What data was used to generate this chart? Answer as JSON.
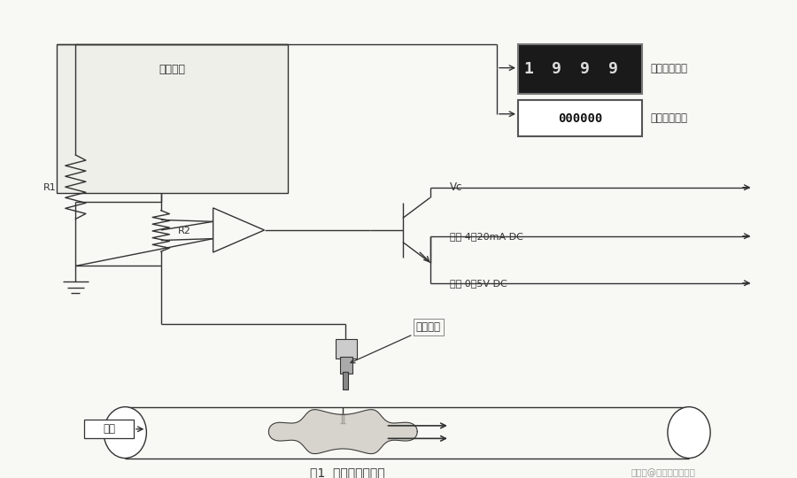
{
  "bg_color": "#f8f8f4",
  "line_color": "#333333",
  "title": "图1  结构及工作原理",
  "watermark": "搜狐号@嘉可自动化仪表",
  "electronic_box": "电子部件",
  "R1": "R1",
  "R2": "R2",
  "Vc": "Vc",
  "output1": "输出 4～20mA DC",
  "output2": "输出 0～5V DC",
  "display1_label": "瞬时流量显示",
  "display2_label": "累积流量显示",
  "display1_digits": "1999",
  "display2_digits": "000000",
  "sensor_label": "传感探头",
  "fluid_label": "流体",
  "display_bg": "#1a1a1a",
  "display_digit_color": "#dddddd",
  "display2_bg": "#ffffff",
  "display2_digit_color": "#111111"
}
